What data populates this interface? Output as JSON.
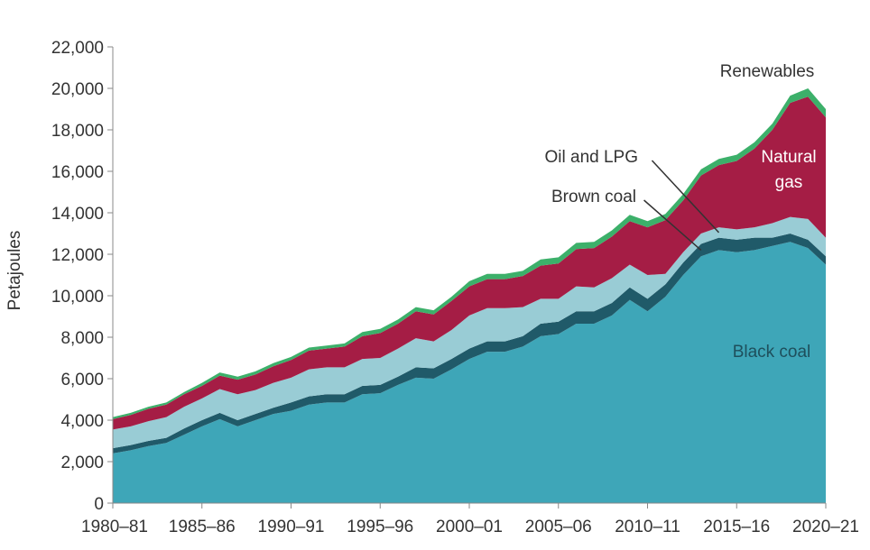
{
  "chart_data": {
    "type": "area",
    "stacked": true,
    "title": "",
    "xlabel": "",
    "ylabel": "Petajoules",
    "ylim": [
      0,
      22000
    ],
    "y_ticks": [
      "0",
      "2,000",
      "4,000",
      "6,000",
      "8,000",
      "10,000",
      "12,000",
      "14,000",
      "16,000",
      "18,000",
      "20,000",
      "22,000"
    ],
    "x_ticks": [
      "1980–81",
      "1985–86",
      "1990–91",
      "1995–96",
      "2000–01",
      "2005–06",
      "2010–11",
      "2015–16",
      "2020–21"
    ],
    "grid": false,
    "legend": "none",
    "x": [
      1980,
      1981,
      1982,
      1983,
      1984,
      1985,
      1986,
      1987,
      1988,
      1989,
      1990,
      1991,
      1992,
      1993,
      1994,
      1995,
      1996,
      1997,
      1998,
      1999,
      2000,
      2001,
      2002,
      2003,
      2004,
      2005,
      2006,
      2007,
      2008,
      2009,
      2010,
      2011,
      2012,
      2013,
      2014,
      2015,
      2016,
      2017,
      2018,
      2019,
      2020
    ],
    "series": [
      {
        "name": "Black coal",
        "color": "#3ea6b8",
        "values": [
          2400,
          2550,
          2750,
          2900,
          3300,
          3700,
          4050,
          3700,
          4000,
          4300,
          4450,
          4750,
          4850,
          4850,
          5250,
          5300,
          5700,
          6050,
          6000,
          6450,
          6950,
          7300,
          7300,
          7550,
          8050,
          8150,
          8650,
          8650,
          9050,
          9800,
          9250,
          9950,
          11000,
          11900,
          12200,
          12100,
          12200,
          12400,
          12600,
          12300,
          11500
        ]
      },
      {
        "name": "Brown coal",
        "color": "#205a69",
        "values": [
          250,
          250,
          250,
          250,
          300,
          300,
          300,
          300,
          300,
          300,
          400,
          400,
          400,
          400,
          400,
          400,
          400,
          500,
          500,
          500,
          500,
          500,
          500,
          500,
          600,
          600,
          600,
          600,
          600,
          600,
          600,
          600,
          600,
          600,
          600,
          600,
          600,
          400,
          400,
          400,
          400
        ]
      },
      {
        "name": "Oil and LPG",
        "color": "#99ccd5",
        "values": [
          900,
          900,
          950,
          1000,
          1050,
          1050,
          1150,
          1250,
          1150,
          1200,
          1200,
          1300,
          1300,
          1300,
          1300,
          1300,
          1350,
          1400,
          1300,
          1400,
          1600,
          1600,
          1600,
          1400,
          1200,
          1100,
          1200,
          1150,
          1200,
          1100,
          1150,
          500,
          500,
          500,
          500,
          500,
          500,
          700,
          800,
          1000,
          900
        ]
      },
      {
        "name": "Natural gas",
        "color": "#a51d45",
        "values": [
          500,
          550,
          600,
          600,
          600,
          600,
          650,
          700,
          750,
          800,
          850,
          900,
          900,
          1000,
          1100,
          1200,
          1200,
          1300,
          1300,
          1400,
          1400,
          1400,
          1400,
          1500,
          1600,
          1700,
          1800,
          1900,
          2000,
          2100,
          2300,
          2600,
          2500,
          2800,
          3000,
          3300,
          3800,
          4500,
          5500,
          5900,
          5800
        ]
      },
      {
        "name": "Renewables",
        "color": "#3cb06a",
        "values": [
          100,
          100,
          100,
          100,
          100,
          150,
          150,
          150,
          150,
          150,
          150,
          150,
          150,
          150,
          200,
          200,
          200,
          200,
          200,
          200,
          250,
          250,
          250,
          250,
          300,
          300,
          300,
          300,
          300,
          300,
          300,
          300,
          300,
          300,
          300,
          300,
          300,
          300,
          350,
          400,
          400
        ]
      }
    ],
    "annotations": [
      {
        "text": "Renewables",
        "color": "#333333"
      },
      {
        "text": "Natural gas",
        "lines": [
          "Natural",
          "gas"
        ],
        "color": "#ffffff"
      },
      {
        "text": "Oil and LPG",
        "color": "#333333"
      },
      {
        "text": "Brown coal",
        "color": "#333333"
      },
      {
        "text": "Black coal",
        "color": "#1e4f5c"
      }
    ]
  }
}
